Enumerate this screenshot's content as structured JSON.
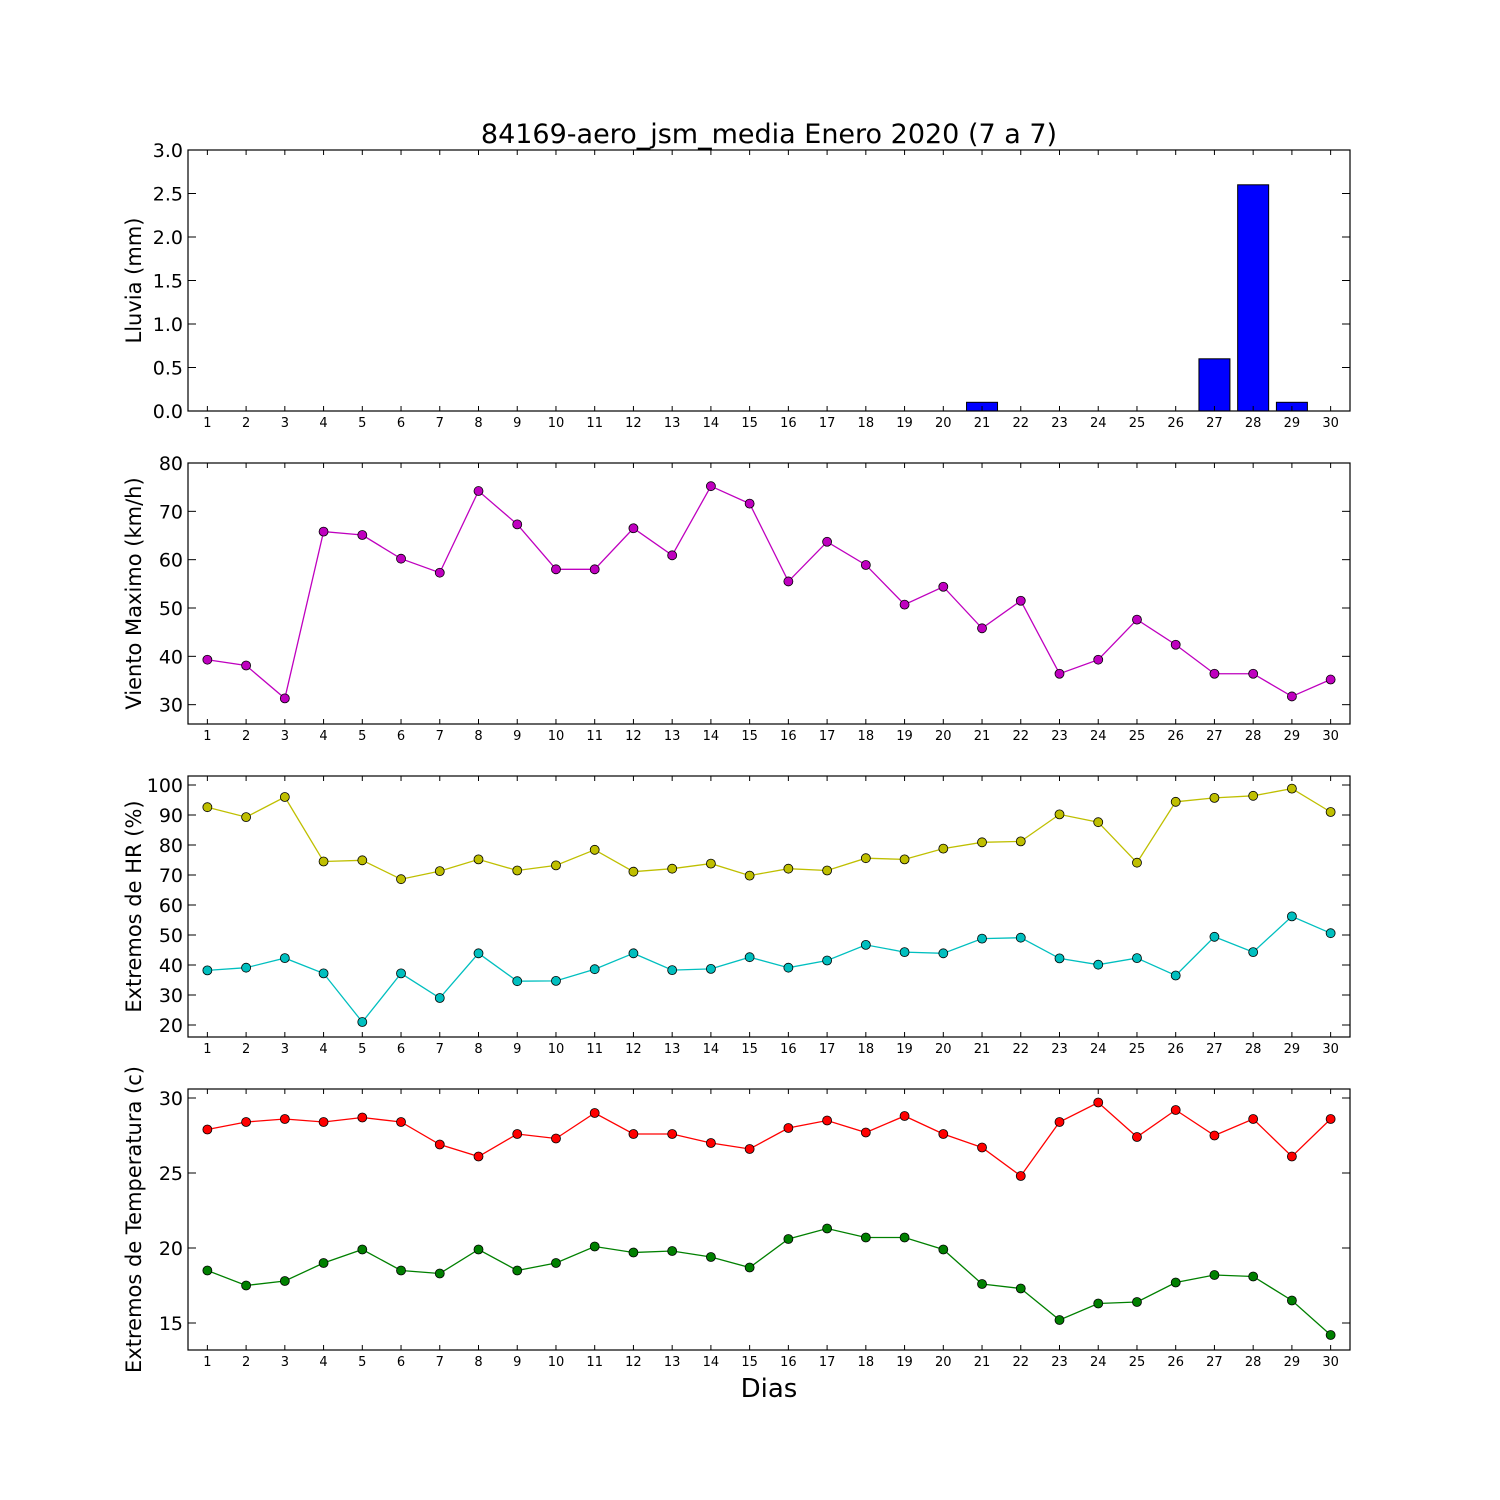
{
  "figure": {
    "title": "84169-aero_jsm_media Enero 2020  (7 a 7)",
    "xlabel": "Dias"
  },
  "chart_data": [
    {
      "type": "bar",
      "ylabel": "Lluvia (mm)",
      "ylim": [
        0,
        3.0
      ],
      "yticks": [
        "0.0",
        "0.5",
        "1.0",
        "1.5",
        "2.0",
        "2.5",
        "3.0"
      ],
      "categories": [
        1,
        2,
        3,
        4,
        5,
        6,
        7,
        8,
        9,
        10,
        11,
        12,
        13,
        14,
        15,
        16,
        17,
        18,
        19,
        20,
        21,
        22,
        23,
        24,
        25,
        26,
        27,
        28,
        29,
        30
      ],
      "values": [
        0,
        0,
        0,
        0,
        0,
        0,
        0,
        0,
        0,
        0,
        0,
        0,
        0,
        0,
        0,
        0,
        0,
        0,
        0,
        0,
        0.1,
        0,
        0,
        0,
        0,
        0,
        0.6,
        2.6,
        0.1,
        0
      ],
      "colors": {
        "bar": "#0000ff",
        "edge": "#000000"
      },
      "grid": false
    },
    {
      "type": "line",
      "ylabel": "Viento Maximo (km/h)",
      "ylim": [
        26,
        80
      ],
      "yticks": [
        "30",
        "40",
        "50",
        "60",
        "70",
        "80"
      ],
      "x": [
        1,
        2,
        3,
        4,
        5,
        6,
        7,
        8,
        9,
        10,
        11,
        12,
        13,
        14,
        15,
        16,
        17,
        18,
        19,
        20,
        21,
        22,
        23,
        24,
        25,
        26,
        27,
        28,
        29,
        30
      ],
      "series": [
        {
          "color": "#bf00bf",
          "values": [
            39.3,
            38.1,
            31.3,
            65.8,
            65.1,
            60.2,
            57.3,
            74.2,
            67.3,
            58.0,
            58.0,
            66.5,
            60.9,
            75.2,
            71.6,
            55.5,
            63.7,
            58.9,
            50.7,
            54.4,
            45.8,
            51.5,
            36.4,
            39.3,
            47.6,
            42.4,
            36.4,
            36.4,
            31.7,
            35.2
          ]
        }
      ],
      "grid": false
    },
    {
      "type": "line",
      "ylabel": "Extremos de HR (%)",
      "ylim": [
        16,
        103
      ],
      "yticks": [
        "20",
        "30",
        "40",
        "50",
        "60",
        "70",
        "80",
        "90",
        "100"
      ],
      "x": [
        1,
        2,
        3,
        4,
        5,
        6,
        7,
        8,
        9,
        10,
        11,
        12,
        13,
        14,
        15,
        16,
        17,
        18,
        19,
        20,
        21,
        22,
        23,
        24,
        25,
        26,
        27,
        28,
        29,
        30
      ],
      "series": [
        {
          "color": "#bfbf00",
          "values": [
            92.6,
            89.3,
            96.0,
            74.5,
            74.9,
            68.6,
            71.3,
            75.2,
            71.5,
            73.2,
            78.4,
            71.1,
            72.1,
            73.8,
            69.8,
            72.1,
            71.5,
            75.6,
            75.2,
            78.8,
            80.9,
            81.2,
            90.2,
            87.6,
            74.1,
            94.4,
            95.7,
            96.4,
            98.8,
            91.0
          ]
        },
        {
          "color": "#00bfbf",
          "values": [
            38.2,
            39.1,
            42.3,
            37.2,
            21.0,
            37.2,
            29.0,
            43.9,
            34.6,
            34.7,
            38.6,
            43.9,
            38.3,
            38.7,
            42.6,
            39.1,
            41.5,
            46.7,
            44.3,
            43.9,
            48.8,
            49.1,
            42.2,
            40.1,
            42.3,
            36.5,
            49.4,
            44.3,
            56.2,
            50.6
          ]
        }
      ],
      "grid": false
    },
    {
      "type": "line",
      "ylabel": "Extremos de Temperatura (c)",
      "ylim": [
        13.2,
        30.6
      ],
      "yticks": [
        "15",
        "20",
        "25",
        "30"
      ],
      "x": [
        1,
        2,
        3,
        4,
        5,
        6,
        7,
        8,
        9,
        10,
        11,
        12,
        13,
        14,
        15,
        16,
        17,
        18,
        19,
        20,
        21,
        22,
        23,
        24,
        25,
        26,
        27,
        28,
        29,
        30
      ],
      "series": [
        {
          "color": "#ff0000",
          "values": [
            27.9,
            28.4,
            28.6,
            28.4,
            28.7,
            28.4,
            26.9,
            26.1,
            27.6,
            27.3,
            29.0,
            27.6,
            27.6,
            27.0,
            26.6,
            28.0,
            28.5,
            27.7,
            28.8,
            27.6,
            26.7,
            24.8,
            28.4,
            29.7,
            27.4,
            29.2,
            27.5,
            28.6,
            26.1,
            28.6
          ]
        },
        {
          "color": "#008000",
          "values": [
            18.5,
            17.5,
            17.8,
            19.0,
            19.9,
            18.5,
            18.3,
            19.9,
            18.5,
            19.0,
            20.1,
            19.7,
            19.8,
            19.4,
            18.7,
            20.6,
            21.3,
            20.7,
            20.7,
            19.9,
            17.6,
            17.3,
            15.2,
            16.3,
            16.4,
            17.7,
            18.2,
            18.1,
            16.5,
            14.2
          ]
        }
      ],
      "grid": false
    }
  ]
}
